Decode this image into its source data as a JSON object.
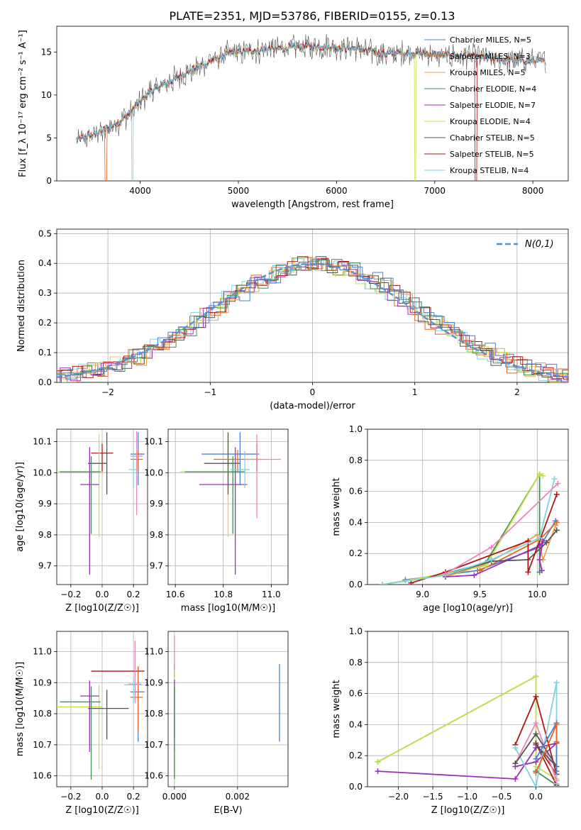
{
  "figure": {
    "title": "PLATE=2351, MJD=53786, FIBERID=0155, z=0.13"
  },
  "chart_data": [
    {
      "id": "spectrum",
      "type": "line",
      "xlabel": "wavelength [Angstrom, rest frame]",
      "ylabel": "Flux [f_λ 10⁻¹⁷ erg cm⁻² s⁻¹ A⁻¹]",
      "xlim": [
        3150,
        8360
      ],
      "ylim": [
        0,
        18
      ],
      "xticks": [
        4000,
        5000,
        6000,
        7000,
        8000
      ],
      "yticks": [
        0,
        5,
        10,
        15
      ],
      "grid": false,
      "legend_position": "right",
      "continuum": {
        "x": [
          3350,
          3500,
          3650,
          3800,
          3950,
          4100,
          4300,
          4500,
          4700,
          4900,
          5100,
          5300,
          5500,
          5700,
          5900,
          6100,
          6300,
          6500,
          6700,
          6900,
          7100,
          7300,
          7500,
          7700,
          7900,
          8130
        ],
        "y": [
          4.8,
          5.3,
          6.0,
          7.0,
          8.6,
          10.4,
          11.5,
          12.8,
          13.8,
          14.8,
          15.1,
          15.3,
          15.5,
          15.7,
          15.6,
          15.5,
          15.2,
          14.8,
          14.9,
          14.8,
          14.6,
          14.6,
          14.3,
          14.1,
          14.0,
          13.9
        ]
      },
      "series": [
        {
          "name": "Chabrier MILES, N_SSP=5",
          "color": "#4a7fd1",
          "cutoff_x": null
        },
        {
          "name": "Salpeter MILES, N_SSP=3",
          "color": "#e6661e",
          "cutoff_x": 3650
        },
        {
          "name": "Kroupa MILES, N_SSP=5",
          "color": "#f0a04b",
          "cutoff_x": null
        },
        {
          "name": "Chabrier ELODIE, N_SSP=4",
          "color": "#3f8f57",
          "cutoff_x": null
        },
        {
          "name": "Salpeter ELODIE, N_SSP=7",
          "color": "#9b30b8",
          "cutoff_x": null
        },
        {
          "name": "Kroupa ELODIE, N_SSP=4",
          "color": "#c7e04a",
          "cutoff_x": 6800
        },
        {
          "name": "Chabrier STELIB, N_SSP=5",
          "color": "#555555",
          "cutoff_x": null
        },
        {
          "name": "Salpeter STELIB, N_SSP=5",
          "color": "#b01515",
          "cutoff_x": 7420
        },
        {
          "name": "Kroupa STELIB, N_SSP=4",
          "color": "#7fd3dc",
          "cutoff_x": 3920
        }
      ]
    },
    {
      "id": "residuals",
      "type": "line",
      "xlabel": "(data-model)/error",
      "ylabel": "Normed distribution",
      "xlim": [
        -2.5,
        2.5
      ],
      "ylim": [
        0,
        0.515
      ],
      "xticks": [
        -2,
        -1,
        0,
        1,
        2
      ],
      "yticks": [
        0.0,
        0.1,
        0.2,
        0.3,
        0.4,
        0.5
      ],
      "grid": true,
      "legend_position": "top-right",
      "gaussian": {
        "name": "N(0,1)",
        "color": "#5b8fd6"
      },
      "hist_colors": [
        "#e6661e",
        "#7fd3dc",
        "#c7e04a",
        "#9b30b8",
        "#555555",
        "#b01515",
        "#3f8f57",
        "#f0a04b",
        "#4a7fd1"
      ]
    },
    {
      "id": "age-vs-Z",
      "type": "scatter",
      "xlabel": "Z [log10(Z/Z☉)]",
      "ylabel": "age [log10(age/yr)]",
      "xlim": [
        -0.29,
        0.29
      ],
      "ylim": [
        9.64,
        10.14
      ],
      "xticks": [
        -0.2,
        0.0,
        0.2
      ],
      "yticks": [
        9.7,
        9.8,
        9.9,
        10.0,
        10.1
      ],
      "grid": true,
      "points": [
        {
          "x": 0.0,
          "y": 10.063,
          "xerr": [
            0.07,
            0.07
          ],
          "yerr": [
            0.06,
            0.03
          ],
          "color": "#b01515"
        },
        {
          "x": -0.02,
          "y": 10.003,
          "xerr": [
            0.27,
            0.02
          ],
          "yerr": [
            0.21,
            0.12
          ],
          "color": "#c7e04a"
        },
        {
          "x": 0.03,
          "y": 10.03,
          "xerr": [
            0.12,
            0.0
          ],
          "yerr": [
            0.1,
            0.1
          ],
          "color": "#555555"
        },
        {
          "x": -0.08,
          "y": 9.962,
          "xerr": [
            0.06,
            0.06
          ],
          "yerr": [
            0.29,
            0.12
          ],
          "color": "#9b30b8"
        },
        {
          "x": -0.07,
          "y": 10.003,
          "xerr": [
            0.2,
            0.06
          ],
          "yerr": [
            0.2,
            0.05
          ],
          "color": "#3f8f57"
        },
        {
          "x": 0.23,
          "y": 10.06,
          "xerr": [
            0.05,
            0.04
          ],
          "yerr": [
            0.1,
            0.07
          ],
          "color": "#4a7fd1"
        },
        {
          "x": 0.23,
          "y": 10.043,
          "xerr": [
            0.05,
            0.03
          ],
          "yerr": [
            0.04,
            0.03
          ],
          "color": "#e6661e"
        },
        {
          "x": 0.22,
          "y": 10.053,
          "xerr": [
            0.04,
            0.04
          ],
          "yerr": [
            0.19,
            0.08
          ],
          "color": "#e986b9"
        },
        {
          "x": 0.2,
          "y": 10.01,
          "xerr": [
            0.03,
            0.03
          ],
          "yerr": [
            0.06,
            0.06
          ],
          "color": "#7fd3dc"
        }
      ]
    },
    {
      "id": "age-vs-mass",
      "type": "scatter",
      "xlabel": "mass [log10(M/M☉)]",
      "ylabel": "",
      "xlim": [
        10.57,
        11.07
      ],
      "ylim": [
        9.64,
        10.14
      ],
      "xticks": [
        10.6,
        10.8,
        11.0
      ],
      "yticks": [
        9.7,
        9.8,
        9.9,
        10.0,
        10.1
      ],
      "grid": true,
      "points": [
        {
          "x": 10.94,
          "y": 10.063,
          "xerr": [
            0.0,
            0.0
          ],
          "yerr": [
            0.06,
            0.03
          ],
          "color": "#b01515"
        },
        {
          "x": 10.82,
          "y": 10.003,
          "xerr": [
            0.2,
            0.07
          ],
          "yerr": [
            0.21,
            0.12
          ],
          "color": "#c7e04a"
        },
        {
          "x": 10.82,
          "y": 10.03,
          "xerr": [
            0.1,
            0.05
          ],
          "yerr": [
            0.1,
            0.1
          ],
          "color": "#555555"
        },
        {
          "x": 10.85,
          "y": 9.962,
          "xerr": [
            0.15,
            0.05
          ],
          "yerr": [
            0.29,
            0.12
          ],
          "color": "#9b30b8"
        },
        {
          "x": 10.84,
          "y": 10.003,
          "xerr": [
            0.2,
            0.05
          ],
          "yerr": [
            0.2,
            0.05
          ],
          "color": "#3f8f57"
        },
        {
          "x": 10.87,
          "y": 10.06,
          "xerr": [
            0.16,
            0.08
          ],
          "yerr": [
            0.1,
            0.07
          ],
          "color": "#4a7fd1"
        },
        {
          "x": 10.86,
          "y": 10.043,
          "xerr": [
            0.1,
            0.1
          ],
          "yerr": [
            0.04,
            0.03
          ],
          "color": "#e6661e"
        },
        {
          "x": 10.94,
          "y": 10.043,
          "xerr": [
            0.05,
            0.1
          ],
          "yerr": [
            0.19,
            0.08
          ],
          "color": "#e986b9"
        },
        {
          "x": 10.89,
          "y": 10.01,
          "xerr": [
            0.06,
            0.02
          ],
          "yerr": [
            0.06,
            0.06
          ],
          "color": "#7fd3dc"
        }
      ]
    },
    {
      "id": "massweight-vs-age",
      "type": "line",
      "xlabel": "age [log10(age/yr)]",
      "ylabel": "mass weight",
      "xlim": [
        8.52,
        10.27
      ],
      "ylim": [
        0,
        1.0
      ],
      "xticks": [
        9.0,
        9.5,
        10.0
      ],
      "yticks": [
        0.0,
        0.2,
        0.4,
        0.6,
        0.8,
        1.0
      ],
      "grid": true,
      "series": [
        {
          "color": "#4a7fd1",
          "x": [
            8.85,
            9.48,
            10.02,
            10.16
          ],
          "y": [
            0.03,
            0.09,
            0.24,
            0.41
          ]
        },
        {
          "color": "#e6661e",
          "x": [
            9.5,
            10.02,
            10.17
          ],
          "y": [
            0.09,
            0.29,
            0.4
          ]
        },
        {
          "color": "#f0a04b",
          "x": [
            9.2,
            9.55,
            10.0,
            10.05,
            10.16
          ],
          "y": [
            0.05,
            0.13,
            0.32,
            0.16,
            0.38
          ]
        },
        {
          "color": "#3f8f57",
          "x": [
            8.65,
            9.2,
            9.55,
            10.02,
            10.02
          ],
          "y": [
            0.0,
            0.07,
            0.14,
            0.71,
            0.08
          ]
        },
        {
          "color": "#9b30b8",
          "x": [
            9.2,
            9.45,
            10.02,
            10.05,
            10.02,
            10.04
          ],
          "y": [
            0.05,
            0.06,
            0.25,
            0.28,
            0.16,
            0.09
          ]
        },
        {
          "color": "#c7e04a",
          "x": [
            8.65,
            9.2,
            9.55,
            10.02,
            10.05
          ],
          "y": [
            0.0,
            0.07,
            0.12,
            0.71,
            0.7
          ]
        },
        {
          "color": "#555555",
          "x": [
            9.2,
            9.6,
            9.92,
            10.08,
            10.17
          ],
          "y": [
            0.06,
            0.15,
            0.16,
            0.27,
            0.35
          ]
        },
        {
          "color": "#b01515",
          "x": [
            8.9,
            9.2,
            9.92,
            9.92,
            10.17
          ],
          "y": [
            0.01,
            0.08,
            0.28,
            0.08,
            0.58
          ]
        },
        {
          "color": "#7fd3dc",
          "x": [
            8.65,
            9.2,
            9.6,
            10.02,
            10.15
          ],
          "y": [
            0.0,
            0.06,
            0.16,
            0.3,
            0.68
          ]
        },
        {
          "color": "#e986b9",
          "x": [
            9.2,
            9.6,
            10.18
          ],
          "y": [
            0.07,
            0.24,
            0.65
          ]
        }
      ]
    },
    {
      "id": "mass-vs-Z",
      "type": "scatter",
      "xlabel": "Z [log10(Z/Z☉)]",
      "ylabel": "mass [log10(M/M☉)]",
      "xlim": [
        -0.29,
        0.29
      ],
      "ylim": [
        10.565,
        11.065
      ],
      "xticks": [
        -0.2,
        0.0,
        0.2
      ],
      "yticks": [
        10.6,
        10.7,
        10.8,
        10.9,
        11.0
      ],
      "grid": true,
      "points": [
        {
          "x": 0.0,
          "y": 10.937,
          "xerr": [
            0.07,
            0.27
          ],
          "yerr": [
            0.0,
            0.0
          ],
          "color": "#b01515"
        },
        {
          "x": -0.02,
          "y": 10.822,
          "xerr": [
            0.27,
            0.02
          ],
          "yerr": [
            0.2,
            0.07
          ],
          "color": "#c7e04a"
        },
        {
          "x": 0.03,
          "y": 10.817,
          "xerr": [
            0.12,
            0.14
          ],
          "yerr": [
            0.1,
            0.06
          ],
          "color": "#555555"
        },
        {
          "x": -0.08,
          "y": 10.857,
          "xerr": [
            0.06,
            0.06
          ],
          "yerr": [
            0.18,
            0.05
          ],
          "color": "#9b30b8"
        },
        {
          "x": -0.07,
          "y": 10.838,
          "xerr": [
            0.2,
            0.06
          ],
          "yerr": [
            0.25,
            0.05
          ],
          "color": "#3f8f57"
        },
        {
          "x": 0.23,
          "y": 10.87,
          "xerr": [
            0.05,
            0.04
          ],
          "yerr": [
            0.16,
            0.08
          ],
          "color": "#4a7fd1"
        },
        {
          "x": 0.23,
          "y": 10.853,
          "xerr": [
            0.05,
            0.03
          ],
          "yerr": [
            0.11,
            0.1
          ],
          "color": "#e6661e"
        },
        {
          "x": 0.21,
          "y": 10.895,
          "xerr": [
            0.04,
            0.04
          ],
          "yerr": [
            0.06,
            0.14
          ],
          "color": "#e986b9"
        },
        {
          "x": 0.2,
          "y": 10.893,
          "xerr": [
            0.06,
            0.06
          ],
          "yerr": [
            0.06,
            0.02
          ],
          "color": "#7fd3dc"
        }
      ]
    },
    {
      "id": "mass-vs-ebv",
      "type": "scatter",
      "xlabel": "E(B-V)",
      "ylabel": "",
      "xlim": [
        -0.0002,
        0.0036
      ],
      "ylim": [
        10.565,
        11.065
      ],
      "xticks": [
        0.0,
        0.002
      ],
      "yticks": [
        10.6,
        10.7,
        10.8,
        10.9,
        11.0
      ],
      "grid": true,
      "points": [
        {
          "x": 0.0,
          "y": 10.937,
          "yerr": [
            0.02,
            0.02
          ],
          "color": "#b01515"
        },
        {
          "x": 0.0,
          "y": 10.75,
          "yerr": [
            0.17,
            0.2
          ],
          "color": "#c7e04a"
        },
        {
          "x": 0.0,
          "y": 10.82,
          "yerr": [
            0.1,
            0.06
          ],
          "color": "#555555"
        },
        {
          "x": 0.0,
          "y": 10.86,
          "yerr": [
            0.18,
            0.05
          ],
          "color": "#9b30b8"
        },
        {
          "x": 0.0,
          "y": 10.84,
          "yerr": [
            0.25,
            0.05
          ],
          "color": "#3f8f57"
        },
        {
          "x": 0.0,
          "y": 10.97,
          "yerr": [
            0.03,
            0.08
          ],
          "color": "#e986b9"
        },
        {
          "x": 0.00333,
          "y": 10.83,
          "yerr": [
            0.12,
            0.13
          ],
          "color": "#4a7fd1"
        }
      ]
    },
    {
      "id": "massweight-vs-Z",
      "type": "line",
      "xlabel": "Z [log10(Z/Z☉)]",
      "ylabel": "mass weight",
      "xlim": [
        -2.45,
        0.47
      ],
      "ylim": [
        0,
        1.0
      ],
      "xticks": [
        -2.0,
        -1.5,
        -1.0,
        -0.5,
        0.0
      ],
      "yticks": [
        0.0,
        0.2,
        0.4,
        0.6,
        0.8,
        1.0
      ],
      "grid": true,
      "series": [
        {
          "color": "#3f8f57",
          "x": [
            -2.3,
            0.0,
            0.0,
            0.3
          ],
          "y": [
            0.16,
            0.71,
            0.1,
            0.01
          ]
        },
        {
          "color": "#c7e04a",
          "x": [
            -2.3,
            0.0,
            0.0,
            0.3
          ],
          "y": [
            0.16,
            0.71,
            0.13,
            0.05
          ]
        },
        {
          "color": "#9b30b8",
          "x": [
            -2.3,
            -0.3,
            0.0,
            0.3,
            0.0,
            -0.3
          ],
          "y": [
            0.1,
            0.05,
            0.25,
            0.28,
            0.16,
            0.13
          ]
        },
        {
          "color": "#b01515",
          "x": [
            -0.3,
            0.0,
            0.3,
            0.0,
            0.3
          ],
          "y": [
            0.27,
            0.58,
            0.08,
            0.28,
            0.01
          ]
        },
        {
          "color": "#7fd3dc",
          "x": [
            -0.3,
            0.0,
            0.3,
            0.3
          ],
          "y": [
            0.25,
            0.0,
            0.67,
            0.02
          ]
        },
        {
          "color": "#e986b9",
          "x": [
            -0.3,
            0.0,
            0.3
          ],
          "y": [
            0.15,
            0.41,
            0.04
          ]
        },
        {
          "color": "#555555",
          "x": [
            -0.3,
            0.0,
            0.3,
            0.0
          ],
          "y": [
            0.15,
            0.34,
            0.13,
            0.27
          ]
        },
        {
          "color": "#4a7fd1",
          "x": [
            0.0,
            0.3,
            0.3
          ],
          "y": [
            0.18,
            0.41,
            0.1
          ]
        },
        {
          "color": "#e6661e",
          "x": [
            0.0,
            0.3,
            0.3
          ],
          "y": [
            0.09,
            0.4,
            0.29
          ]
        }
      ]
    }
  ]
}
